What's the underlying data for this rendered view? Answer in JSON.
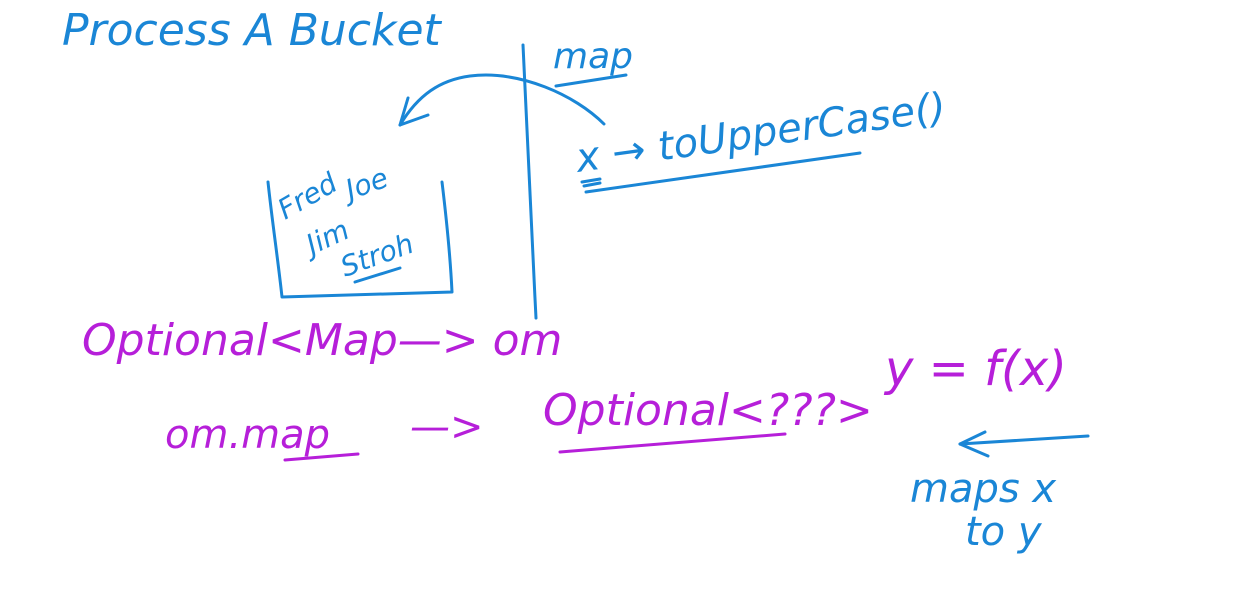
{
  "colors": {
    "background": "#ffffff",
    "blue_ink": "#1a86d6",
    "purple_ink": "#b61fd9"
  },
  "blue_notes": {
    "heading": "Process A Bucket",
    "map_label": "map",
    "lambda": "x → toUpperCase()",
    "bucket_items": [
      "Fred",
      "Joe",
      "Jim",
      "Stroh"
    ]
  },
  "purple_notes": {
    "declaration": "Optional<Map—> om",
    "call": "om.map",
    "arrow": "—>",
    "result": "Optional<???>",
    "function": "y = f(x)",
    "caption_line1": "maps x",
    "caption_line2": "to y"
  }
}
